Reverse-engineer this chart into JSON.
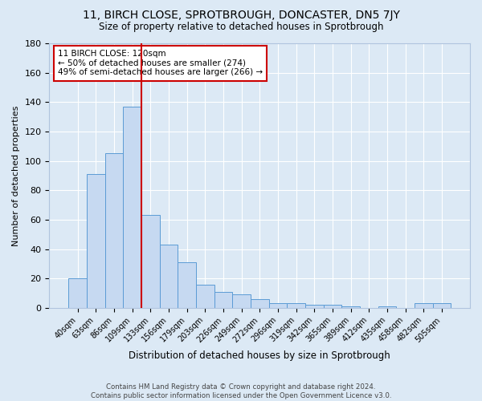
{
  "title": "11, BIRCH CLOSE, SPROTBROUGH, DONCASTER, DN5 7JY",
  "subtitle": "Size of property relative to detached houses in Sprotbrough",
  "xlabel": "Distribution of detached houses by size in Sprotbrough",
  "ylabel": "Number of detached properties",
  "footer_line1": "Contains HM Land Registry data © Crown copyright and database right 2024.",
  "footer_line2": "Contains public sector information licensed under the Open Government Licence v3.0.",
  "bar_labels": [
    "40sqm",
    "63sqm",
    "86sqm",
    "109sqm",
    "133sqm",
    "156sqm",
    "179sqm",
    "203sqm",
    "226sqm",
    "249sqm",
    "272sqm",
    "296sqm",
    "319sqm",
    "342sqm",
    "365sqm",
    "389sqm",
    "412sqm",
    "435sqm",
    "458sqm",
    "482sqm",
    "505sqm"
  ],
  "bar_values": [
    20,
    91,
    105,
    137,
    63,
    43,
    31,
    16,
    11,
    9,
    6,
    3,
    3,
    2,
    2,
    1,
    0,
    1,
    0,
    3,
    3
  ],
  "bar_color": "#c6d9f1",
  "bar_edge_color": "#5b9bd5",
  "background_color": "#dce9f5",
  "grid_color": "#ffffff",
  "red_line_index": 3,
  "annotation_line1": "11 BIRCH CLOSE: 120sqm",
  "annotation_line2": "← 50% of detached houses are smaller (274)",
  "annotation_line3": "49% of semi-detached houses are larger (266) →",
  "annotation_box_color": "#ffffff",
  "annotation_box_edge": "#cc0000",
  "ylim": [
    0,
    180
  ],
  "yticks": [
    0,
    20,
    40,
    60,
    80,
    100,
    120,
    140,
    160,
    180
  ]
}
